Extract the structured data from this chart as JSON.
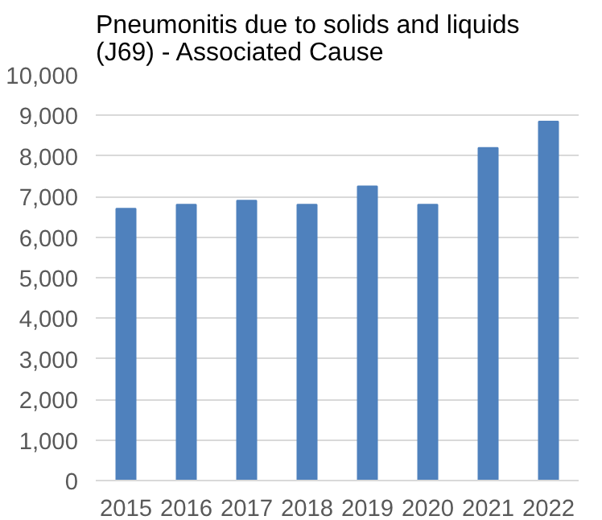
{
  "chart_data": {
    "type": "bar",
    "title": "Pneumonitis due to solids and liquids\n(J69) - Associated Cause",
    "categories": [
      "2015",
      "2016",
      "2017",
      "2018",
      "2019",
      "2020",
      "2021",
      "2022"
    ],
    "values": [
      6700,
      6800,
      6900,
      6800,
      7250,
      6800,
      8200,
      8850
    ],
    "color": "#4f81bd",
    "ylim": [
      0,
      10000
    ],
    "yticks": [
      {
        "value": 0,
        "label": "0"
      },
      {
        "value": 1000,
        "label": "1,000"
      },
      {
        "value": 2000,
        "label": "2,000"
      },
      {
        "value": 3000,
        "label": "3,000"
      },
      {
        "value": 4000,
        "label": "4,000"
      },
      {
        "value": 5000,
        "label": "5,000"
      },
      {
        "value": 6000,
        "label": "6,000"
      },
      {
        "value": 7000,
        "label": "7,000"
      },
      {
        "value": 8000,
        "label": "8,000"
      },
      {
        "value": 9000,
        "label": "9,000"
      },
      {
        "value": 10000,
        "label": "10,000"
      }
    ],
    "grid": "y"
  }
}
